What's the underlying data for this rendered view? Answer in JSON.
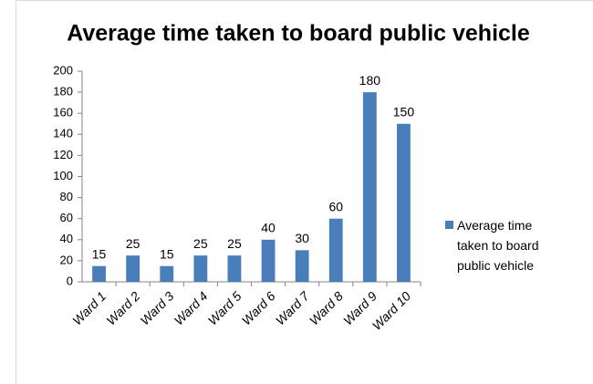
{
  "chart_data": {
    "type": "bar",
    "title": "Average time taken to board public vehicle",
    "categories": [
      "Ward 1",
      "Ward 2",
      "Ward 3",
      "Ward 4",
      "Ward 5",
      "Ward 6",
      "Ward 7",
      "Ward 8",
      "Ward 9",
      "Ward 10"
    ],
    "series": [
      {
        "name": "Average time taken to board public vehicle",
        "color": "#4a7ebb",
        "values": [
          15,
          25,
          15,
          25,
          25,
          40,
          30,
          60,
          180,
          150
        ]
      }
    ],
    "ylim": [
      0,
      200
    ],
    "yticks": [
      0,
      20,
      40,
      60,
      80,
      100,
      120,
      140,
      160,
      180,
      200
    ],
    "grid": false,
    "legend": "right",
    "data_labels": true
  }
}
